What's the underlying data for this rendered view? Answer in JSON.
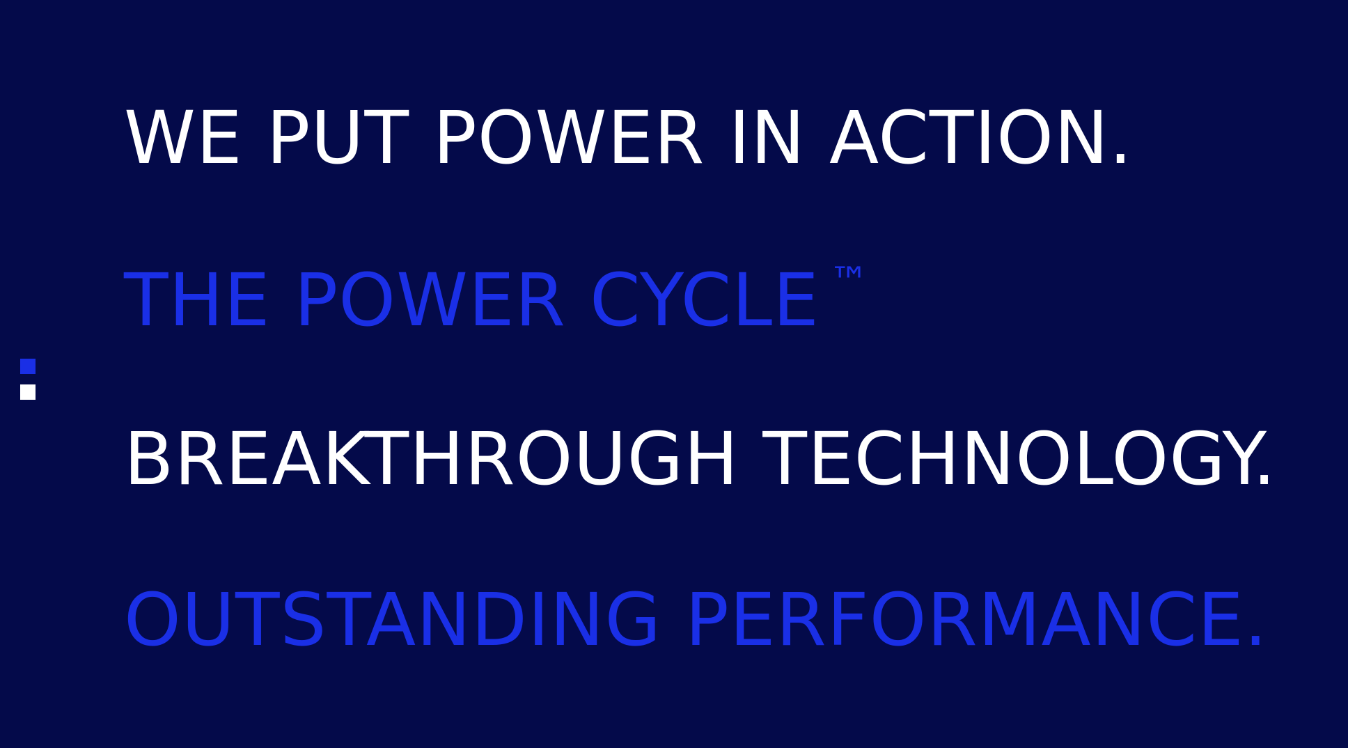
{
  "slide": {
    "background_color": "#040a4a",
    "accent_color": "#1a2fe6",
    "text_color": "#ffffff",
    "lines": [
      {
        "text": "WE PUT POWER IN ACTION.",
        "color": "#ffffff"
      },
      {
        "text": "THE POWER CYCLE",
        "suffix": "™",
        "color": "#1a2fe6"
      },
      {
        "text": "BREAKTHROUGH TECHNOLOGY.",
        "color": "#ffffff"
      },
      {
        "text": "OUTSTANDING PERFORMANCE.",
        "color": "#1a2fe6"
      }
    ],
    "side_marker": {
      "top_color": "#1a2fe6",
      "bottom_color": "#ffffff"
    }
  }
}
